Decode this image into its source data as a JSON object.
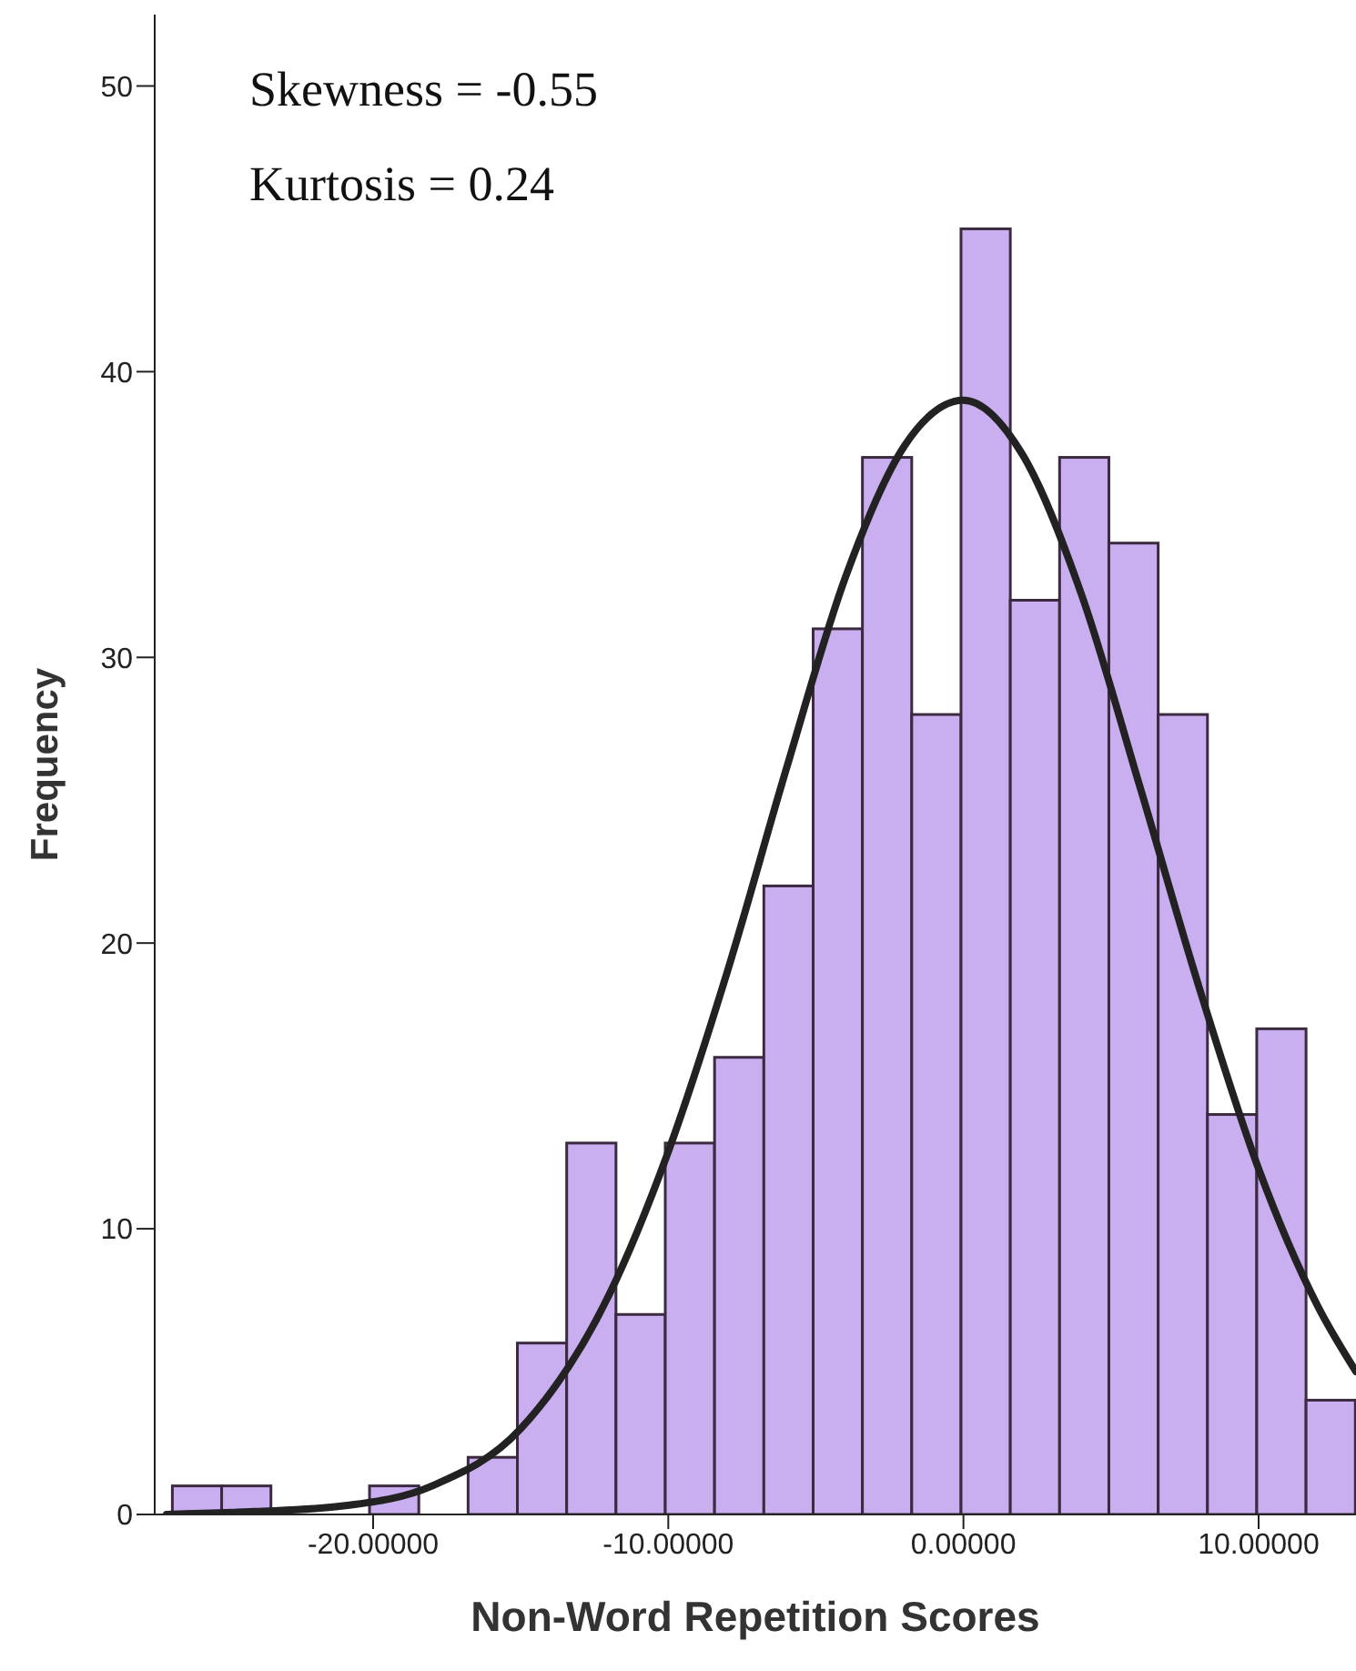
{
  "chart_data": {
    "type": "histogram",
    "xlabel": "Non-Word Repetition Scores",
    "ylabel": "Frequency",
    "bins": [
      -26.8,
      -25.13,
      -23.46,
      -21.79,
      -20.12,
      -18.45,
      -16.78,
      -15.11,
      -13.44,
      -11.77,
      -10.1,
      -8.43,
      -6.76,
      -5.09,
      -3.42,
      -1.75,
      -0.08,
      1.59,
      3.26,
      4.93,
      6.6,
      8.27,
      9.94,
      11.61,
      13.28
    ],
    "values": [
      1,
      1,
      0,
      0,
      1,
      0,
      2,
      6,
      13,
      7,
      13,
      16,
      22,
      31,
      37,
      28,
      45,
      32,
      37,
      34,
      28,
      14,
      17,
      4
    ],
    "color": "#c9aef0",
    "series": [
      {
        "type": "line",
        "color": "#222222",
        "x": [
          -27,
          -24,
          -21,
          -18,
          -15,
          -12,
          -10,
          -8,
          -6,
          -4,
          -2,
          0,
          2,
          4,
          6,
          8,
          10,
          12,
          13.3
        ],
        "values": [
          0.0,
          0.1,
          0.3,
          1.0,
          3.0,
          7.7,
          12.7,
          19.0,
          26.1,
          32.8,
          37.4,
          39.0,
          37.1,
          32.2,
          25.4,
          18.4,
          12.1,
          7.3,
          5.0
        ]
      }
    ],
    "xlim": [
      -27.4,
      13.3
    ],
    "xticks": [
      {
        "value": -20,
        "label": "-20.00000"
      },
      {
        "value": -10,
        "label": "-10.00000"
      },
      {
        "value": 0,
        "label": "0.00000"
      },
      {
        "value": 10,
        "label": "10.00000"
      }
    ],
    "ylim": [
      0,
      52.5
    ],
    "yticks": [
      0,
      10,
      20,
      30,
      40,
      50
    ],
    "grid": false,
    "legend": false,
    "annotations": [
      "Skewness = -0.55",
      "Kurtosis = 0.24"
    ]
  }
}
